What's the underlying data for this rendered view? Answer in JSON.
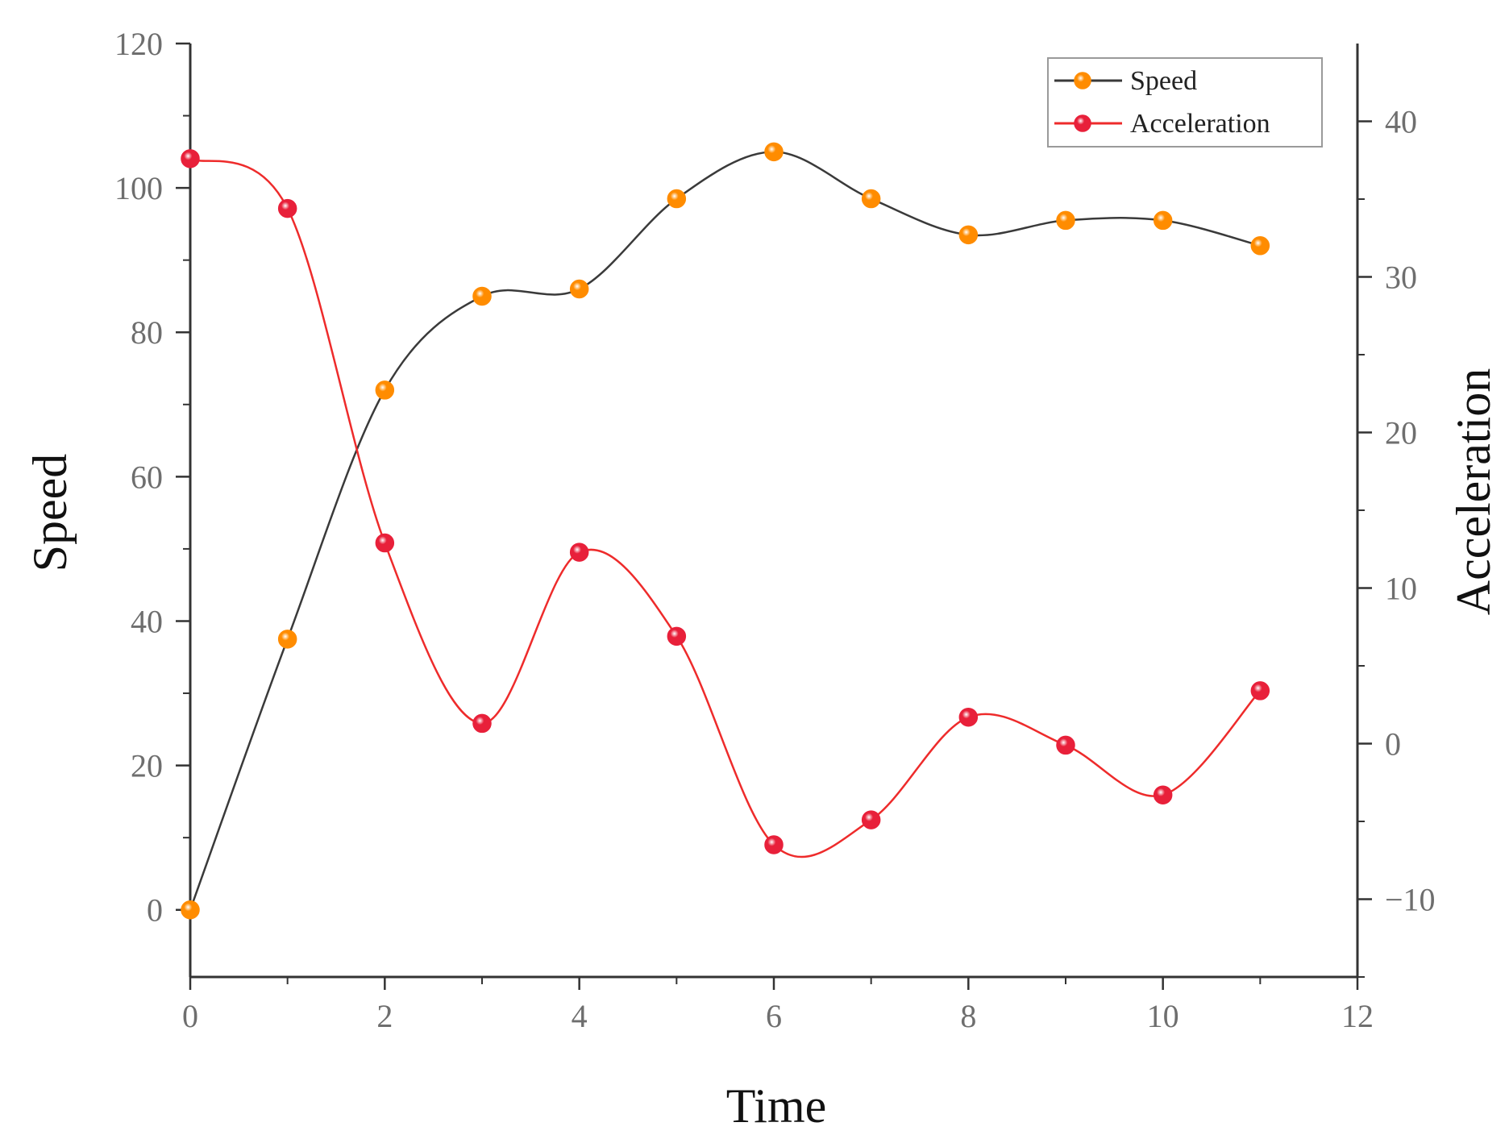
{
  "chart_data": {
    "type": "line",
    "title": "",
    "xlabel": "Time",
    "ylabel": "Speed",
    "y2label": "Acceleration",
    "x": [
      0,
      1,
      2,
      3,
      4,
      5,
      6,
      7,
      8,
      9,
      10,
      11
    ],
    "xlim": [
      0,
      12
    ],
    "ylim": [
      -9.3,
      120
    ],
    "y2lim": [
      -15,
      45
    ],
    "xticks": [
      "0",
      "2",
      "4",
      "6",
      "8",
      "10",
      "12"
    ],
    "yticks": [
      "0",
      "20",
      "40",
      "60",
      "80",
      "100",
      "120"
    ],
    "y2ticks": [
      "−10",
      "0",
      "10",
      "20",
      "30",
      "40"
    ],
    "grid": false,
    "legend_position": "top-right",
    "smooth": true,
    "series": [
      {
        "name": "Speed",
        "axis": "left",
        "values": [
          0,
          37.5,
          72,
          85,
          86,
          98.5,
          105,
          98.5,
          93.5,
          95.5,
          95.5,
          92
        ],
        "line_color": "#3a3a3a",
        "marker_color": "#ff8c00"
      },
      {
        "name": "Acceleration",
        "axis": "right",
        "values": [
          37.6,
          34.4,
          12.9,
          1.3,
          12.3,
          6.9,
          -6.5,
          -4.9,
          1.7,
          -0.1,
          -3.3,
          3.4
        ],
        "line_color": "#ee2b2b",
        "marker_color": "#e8203a"
      }
    ]
  }
}
